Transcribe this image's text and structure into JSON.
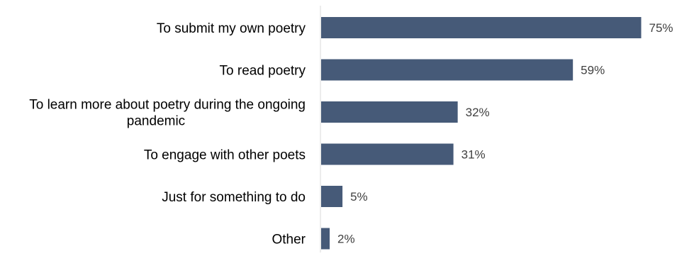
{
  "chart_data": {
    "type": "bar",
    "orientation": "horizontal",
    "categories": [
      [
        "To submit my own poetry"
      ],
      [
        "To read poetry"
      ],
      [
        "To learn more about poetry during the ongoing",
        "pandemic"
      ],
      [
        "To engage with other poets"
      ],
      [
        "Just for something to do"
      ],
      [
        "Other"
      ]
    ],
    "values": [
      75,
      59,
      32,
      31,
      5,
      2
    ],
    "value_labels": [
      "75%",
      "59%",
      "32%",
      "31%",
      "5%",
      "2%"
    ],
    "unit": "%",
    "xlim": [
      0,
      100
    ],
    "grid": false,
    "legend": "none",
    "bar_color": "#465a78",
    "axis_color": "#d9d9d9"
  }
}
